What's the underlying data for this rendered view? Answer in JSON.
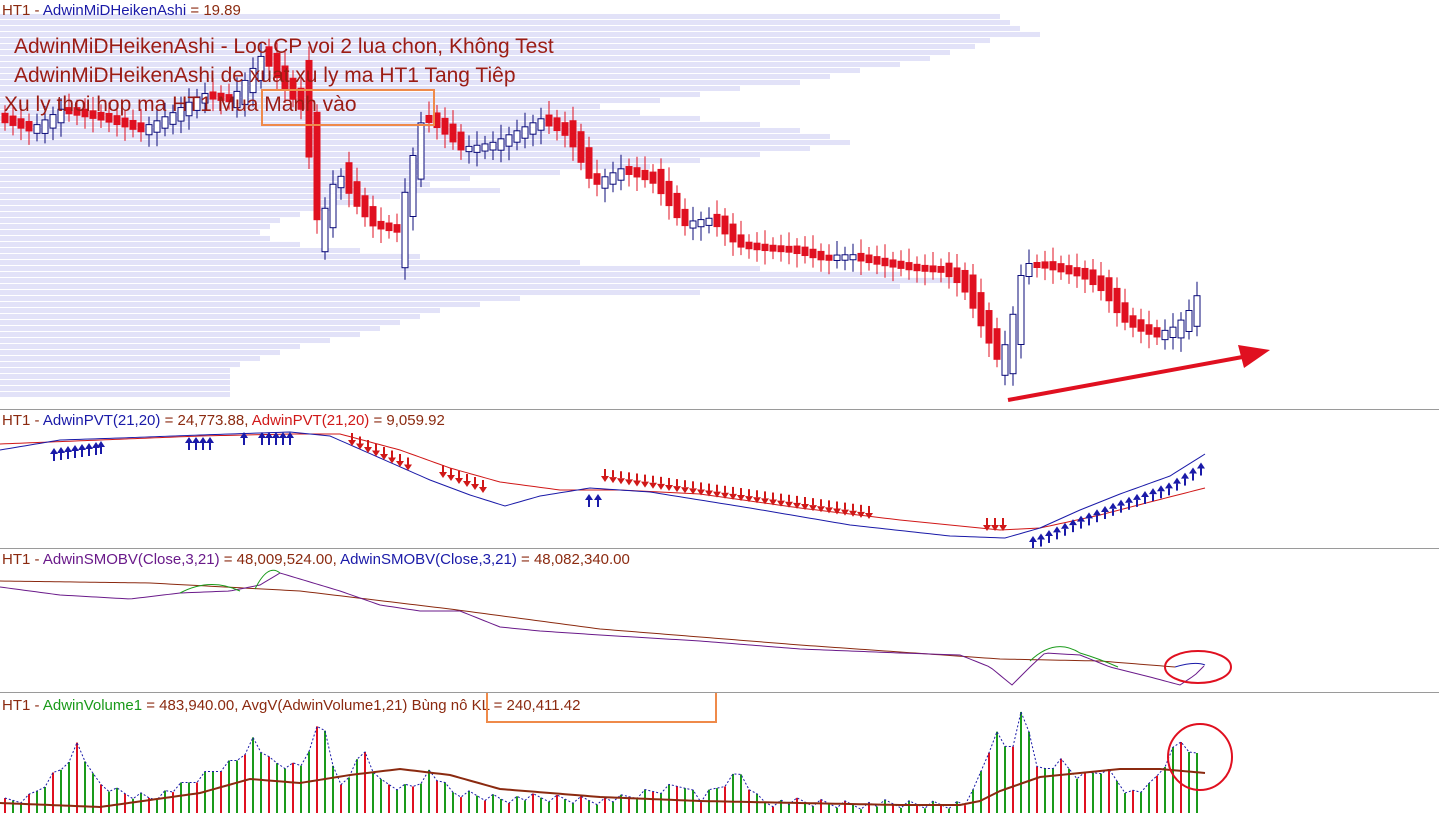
{
  "colors": {
    "up": "#0b0b7a",
    "down": "#e01020",
    "profile": "#e2e2f8",
    "pvt_blue": "#1a1aa8",
    "pvt_red": "#d01818",
    "obv_purple": "#6a1a8a",
    "obv_brown": "#8b2a10",
    "obv_green": "#1a9a1a",
    "vol_green": "#1a9a1a",
    "vol_red": "#e01020",
    "vol_avg": "#8b2a10",
    "vol_dash": "#1a1aa8",
    "annotation_red": "#e01020",
    "annotation_orange": "#ef8a4a"
  },
  "price_pane": {
    "title_prefix": "HT1 - ",
    "title_series": "AdwinMiDHeikenAshi",
    "title_value": " = 19.89",
    "notes": [
      "AdwinMiDHeikenAshi -  Loc CP voi 2 lua chon, Không Test",
      "AdwinMiDHeikenAshi de xuat xu ly ma HT1  Tang Tiêp",
      "Xu ly thoi hop ma HT1  Mua Manh vào"
    ]
  },
  "pvt_pane": {
    "title_prefix": "HT1 - ",
    "series1": "AdwinPVT(21,20)",
    "value1": " = 24,773.88, ",
    "series2": "AdwinPVT(21,20)",
    "value2": " = 9,059.92"
  },
  "obv_pane": {
    "title_prefix": "HT1 - ",
    "series1": "AdwinSMOBV(Close,3,21)",
    "value1": " = 48,009,524.00, ",
    "series2": "AdwinSMOBV(Close,3,21)",
    "value2": " = 48,082,340.00"
  },
  "vol_pane": {
    "title_prefix": "HT1 - ",
    "series1": "AdwinVolume1",
    "value1": " = 483,940.00, AvgV(AdwinVolume1,21) ",
    "highlight": "Bùng nô KL = 240,411.42"
  },
  "chart_data": {
    "type": "candlestick",
    "symbol": "HT1",
    "last_price": 19.89,
    "indicators": {
      "pvt_blue_last": 24773.88,
      "pvt_red_last": 9059.92,
      "smobv_1_last": 48009524.0,
      "smobv_2_last": 48082340.0,
      "volume_last": 483940.0,
      "volume_avg21_last": 240411.42
    }
  }
}
